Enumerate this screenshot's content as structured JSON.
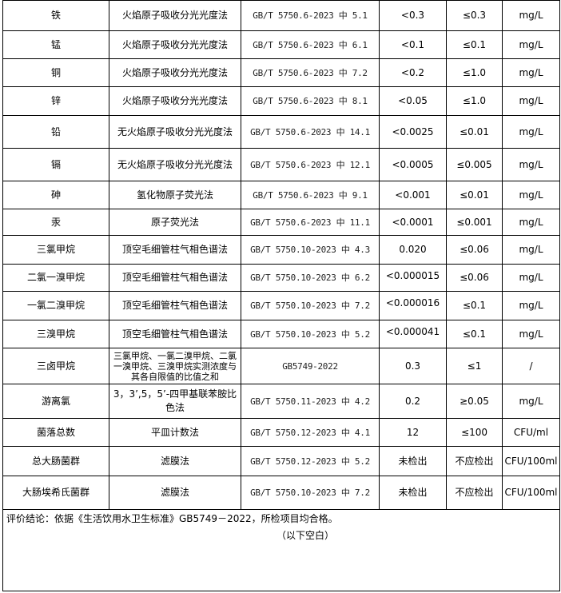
{
  "rows": [
    {
      "item": "铁",
      "method": "火焰原子吸收分光光度法",
      "standard": "GB/T 5750.6-2023 中 5.1",
      "result": "<0.3",
      "limit": "≤0.3",
      "unit": "mg/L"
    },
    {
      "item": "锰",
      "method": "火焰原子吸收分光光度法",
      "standard": "GB/T 5750.6-2023 中 6.1",
      "result": "<0.1",
      "limit": "≤0.1",
      "unit": "mg/L"
    },
    {
      "item": "铜",
      "method": "火焰原子吸收分光光度法",
      "standard": "GB/T 5750.6-2023 中 7.2",
      "result": "<0.2",
      "limit": "≤1.0",
      "unit": "mg/L"
    },
    {
      "item": "锌",
      "method": "火焰原子吸收分光光度法",
      "standard": "GB/T 5750.6-2023 中 8.1",
      "result": "<0.05",
      "limit": "≤1.0",
      "unit": "mg/L"
    },
    {
      "item": "铅",
      "method": "无火焰原子吸收分光光度法",
      "standard": "GB/T 5750.6-2023 中 14.1",
      "result": "<0.0025",
      "limit": "≤0.01",
      "unit": "mg/L"
    },
    {
      "item": "镉",
      "method": "无火焰原子吸收分光光度法",
      "standard": "GB/T 5750.6-2023 中 12.1",
      "result": "<0.0005",
      "limit": "≤0.005",
      "unit": "mg/L"
    },
    {
      "item": "砷",
      "method": "氢化物原子荧光法",
      "standard": "GB/T 5750.6-2023 中 9.1",
      "result": "<0.001",
      "limit": "≤0.01",
      "unit": "mg/L"
    },
    {
      "item": "汞",
      "method": "原子荧光法",
      "standard": "GB/T 5750.6-2023 中 11.1",
      "result": "<0.0001",
      "limit": "≤0.001",
      "unit": "mg/L"
    },
    {
      "item": "三氯甲烷",
      "method": "顶空毛细管柱气相色谱法",
      "standard": "GB/T 5750.10-2023 中 4.3",
      "result": "0.020",
      "limit": "≤0.06",
      "unit": "mg/L"
    },
    {
      "item": "二氯一溴甲烷",
      "method": "顶空毛细管柱气相色谱法",
      "standard": "GB/T 5750.10-2023 中 6.2",
      "result": "<0.000015",
      "limit": "≤0.06",
      "unit": "mg/L"
    },
    {
      "item": "一氯二溴甲烷",
      "method": "顶空毛细管柱气相色谱法",
      "standard": "GB/T 5750.10-2023 中 7.2",
      "result": "<0.000016",
      "limit": "≤0.1",
      "unit": "mg/L"
    },
    {
      "item": "三溴甲烷",
      "method": "顶空毛细管柱气相色谱法",
      "standard": "GB/T 5750.10-2023 中 5.2",
      "result": "<0.000041",
      "limit": "≤0.1",
      "unit": "mg/L"
    },
    {
      "item": "三卤甲烷",
      "method": "三氯甲烷、一氯二溴甲烷、二氯一溴甲烷、三溴甲烷实测浓度与其各自限值的比值之和",
      "standard": "GB5749-2022",
      "result": "0.3",
      "limit": "≤1",
      "unit": "/"
    },
    {
      "item": "游离氯",
      "method": "3，3’,5，5’-四甲基联苯胺比色法",
      "standard": "GB/T 5750.11-2023 中 4.2",
      "result": "0.2",
      "limit": "≥0.05",
      "unit": "mg/L"
    },
    {
      "item": "菌落总数",
      "method": "平皿计数法",
      "standard": "GB/T 5750.12-2023 中 4.1",
      "result": "12",
      "limit": "≤100",
      "unit": "CFU/ml"
    },
    {
      "item": "总大肠菌群",
      "method": "滤膜法",
      "standard": "GB/T 5750.12-2023 中 5.2",
      "result": "未检出",
      "limit": "不应检出",
      "unit": "CFU/100ml"
    },
    {
      "item": "大肠埃希氏菌群",
      "method": "滤膜法",
      "standard": "GB/T 5750.10-2023 中 7.2",
      "result": "未检出",
      "limit": "不应检出",
      "unit": "CFU/100ml"
    }
  ],
  "conclusion": "评价结论：依据《生活饮用水卫生标准》GB5749－2022，所检项目均合格。",
  "blank_note": "（以下空白）"
}
